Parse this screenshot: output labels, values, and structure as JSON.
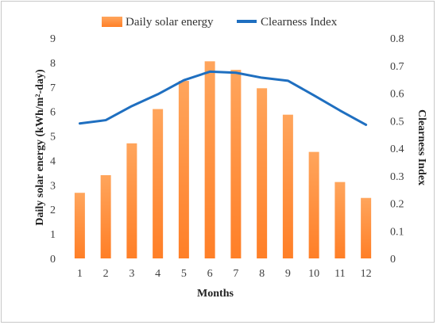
{
  "chart_data": {
    "type": "bar",
    "categories": [
      "1",
      "2",
      "3",
      "4",
      "5",
      "6",
      "7",
      "8",
      "9",
      "10",
      "11",
      "12"
    ],
    "series": [
      {
        "name": "Daily solar energy",
        "type": "bar",
        "axis": "left",
        "color": "#ff7f27",
        "values": [
          2.68,
          3.4,
          4.7,
          6.1,
          7.25,
          8.05,
          7.7,
          6.95,
          5.87,
          4.35,
          3.12,
          2.47
        ]
      },
      {
        "name": "Clearness Index",
        "type": "line",
        "axis": "right",
        "color": "#1f6fc0",
        "values": [
          0.49,
          0.502,
          0.553,
          0.596,
          0.647,
          0.678,
          0.674,
          0.656,
          0.645,
          0.592,
          0.537,
          0.485
        ]
      }
    ],
    "xlabel": "Months",
    "ylabel": "Daily solar energy (kWh/m²-day)",
    "ylabel_right": "Clearness Index",
    "ylim": [
      0,
      9
    ],
    "ylim_right": [
      0,
      0.8
    ],
    "yticks": [
      "0",
      "1",
      "2",
      "3",
      "4",
      "5",
      "6",
      "7",
      "8",
      "9"
    ],
    "yticks_right": [
      "0",
      "0.1",
      "0.2",
      "0.3",
      "0.4",
      "0.5",
      "0.6",
      "0.7",
      "0.8"
    ],
    "grid": false,
    "legend": "top-center"
  }
}
